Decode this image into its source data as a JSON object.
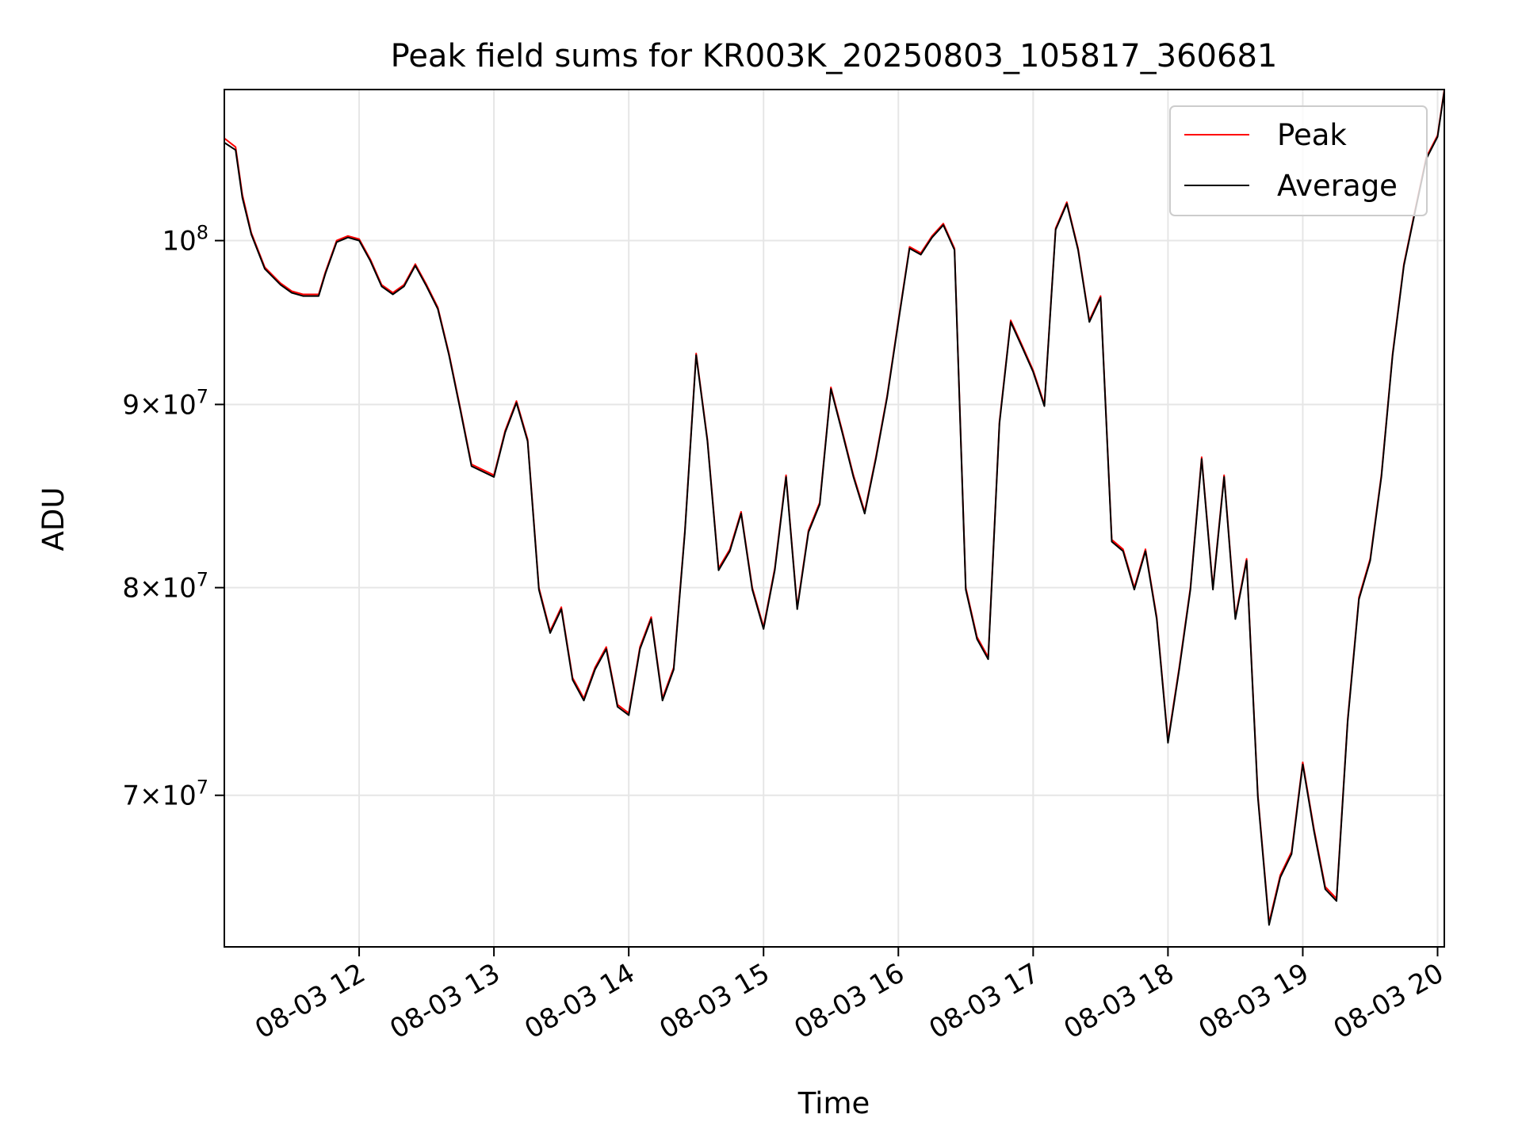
{
  "chart_data": {
    "type": "line",
    "title": "Peak field sums for KR003K_20250803_105817_360681",
    "xlabel": "Time",
    "ylabel": "ADU",
    "y_scale": "log",
    "grid": true,
    "legend_position": "top-right",
    "x_range": [
      "08-03 11:00",
      "08-03 20:03"
    ],
    "y_range": [
      63500000,
      110200000
    ],
    "x_ticks": [
      "08-03 12",
      "08-03 13",
      "08-03 14",
      "08-03 15",
      "08-03 16",
      "08-03 17",
      "08-03 18",
      "08-03 19",
      "08-03 20"
    ],
    "y_ticks": [
      {
        "value": 70000000,
        "mantissa": "7",
        "base": "10",
        "exp": "7"
      },
      {
        "value": 80000000,
        "mantissa": "8",
        "base": "10",
        "exp": "7"
      },
      {
        "value": 90000000,
        "mantissa": "9",
        "base": "10",
        "exp": "7"
      },
      {
        "value": 100000000,
        "mantissa": "",
        "base": "10",
        "exp": "8"
      }
    ],
    "series": [
      {
        "name": "Peak",
        "color": "#ff0000",
        "x": [
          "08-03 11:00",
          "08-03 11:05",
          "08-03 11:08",
          "08-03 11:12",
          "08-03 11:18",
          "08-03 11:25",
          "08-03 11:30",
          "08-03 11:35",
          "08-03 11:42",
          "08-03 11:45",
          "08-03 11:50",
          "08-03 11:55",
          "08-03 12:00",
          "08-03 12:05",
          "08-03 12:10",
          "08-03 12:15",
          "08-03 12:20",
          "08-03 12:25",
          "08-03 12:30",
          "08-03 12:35",
          "08-03 12:40",
          "08-03 12:45",
          "08-03 12:50",
          "08-03 13:00",
          "08-03 13:05",
          "08-03 13:10",
          "08-03 13:15",
          "08-03 13:20",
          "08-03 13:25",
          "08-03 13:30",
          "08-03 13:35",
          "08-03 13:40",
          "08-03 13:45",
          "08-03 13:50",
          "08-03 13:55",
          "08-03 14:00",
          "08-03 14:05",
          "08-03 14:10",
          "08-03 14:15",
          "08-03 14:20",
          "08-03 14:25",
          "08-03 14:30",
          "08-03 14:35",
          "08-03 14:40",
          "08-03 14:45",
          "08-03 14:50",
          "08-03 14:55",
          "08-03 15:00",
          "08-03 15:05",
          "08-03 15:10",
          "08-03 15:15",
          "08-03 15:20",
          "08-03 15:25",
          "08-03 15:30",
          "08-03 15:35",
          "08-03 15:40",
          "08-03 15:45",
          "08-03 15:50",
          "08-03 15:55",
          "08-03 16:00",
          "08-03 16:05",
          "08-03 16:10",
          "08-03 16:15",
          "08-03 16:20",
          "08-03 16:25",
          "08-03 16:30",
          "08-03 16:35",
          "08-03 16:40",
          "08-03 16:45",
          "08-03 16:50",
          "08-03 16:55",
          "08-03 17:00",
          "08-03 17:05",
          "08-03 17:10",
          "08-03 17:15",
          "08-03 17:20",
          "08-03 17:25",
          "08-03 17:30",
          "08-03 17:35",
          "08-03 17:40",
          "08-03 17:45",
          "08-03 17:50",
          "08-03 17:55",
          "08-03 18:00",
          "08-03 18:05",
          "08-03 18:10",
          "08-03 18:15",
          "08-03 18:20",
          "08-03 18:25",
          "08-03 18:30",
          "08-03 18:35",
          "08-03 18:40",
          "08-03 18:45",
          "08-03 18:50",
          "08-03 18:55",
          "08-03 19:00",
          "08-03 19:05",
          "08-03 19:10",
          "08-03 19:15",
          "08-03 19:20",
          "08-03 19:25",
          "08-03 19:30",
          "08-03 19:35",
          "08-03 19:40",
          "08-03 19:45",
          "08-03 19:50",
          "08-03 19:55",
          "08-03 20:00",
          "08-03 20:03"
        ],
        "values": [
          106800000,
          106200000,
          103000000,
          100500000,
          98300000,
          97300000,
          96800000,
          96600000,
          96600000,
          98000000,
          100000000,
          100300000,
          100100000,
          98800000,
          97200000,
          96700000,
          97200000,
          98500000,
          97200000,
          95800000,
          93000000,
          89800000,
          86600000,
          86000000,
          88500000,
          90200000,
          88000000,
          80000000,
          77800000,
          79000000,
          75500000,
          74500000,
          76000000,
          77000000,
          74200000,
          73800000,
          77000000,
          78500000,
          74500000,
          76000000,
          83000000,
          93000000,
          88000000,
          81000000,
          82000000,
          84000000,
          80000000,
          78000000,
          81000000,
          86000000,
          79000000,
          83000000,
          84500000,
          91000000,
          88500000,
          86000000,
          84000000,
          87000000,
          90500000,
          95000000,
          99600000,
          99200000,
          100300000,
          101100000,
          99500000,
          80000000,
          77500000,
          76500000,
          89000000,
          95000000,
          93500000,
          92000000,
          90000000,
          100800000,
          102500000,
          99500000,
          95000000,
          96500000,
          82500000,
          82000000,
          80000000,
          82000000,
          78500000,
          72500000,
          76000000,
          80000000,
          87000000,
          80000000,
          86000000,
          78500000,
          81500000,
          70000000,
          64500000,
          66500000,
          67500000,
          71500000,
          68500000,
          66000000,
          65500000,
          73500000,
          79500000,
          81500000,
          86000000,
          93000000,
          98500000,
          102000000,
          105500000,
          107000000,
          110200000
        ]
      },
      {
        "name": "Average",
        "color": "#000000",
        "x": [
          "08-03 11:00",
          "08-03 11:05",
          "08-03 11:08",
          "08-03 11:12",
          "08-03 11:18",
          "08-03 11:25",
          "08-03 11:30",
          "08-03 11:35",
          "08-03 11:42",
          "08-03 11:45",
          "08-03 11:50",
          "08-03 11:55",
          "08-03 12:00",
          "08-03 12:05",
          "08-03 12:10",
          "08-03 12:15",
          "08-03 12:20",
          "08-03 12:25",
          "08-03 12:30",
          "08-03 12:35",
          "08-03 12:40",
          "08-03 12:45",
          "08-03 12:50",
          "08-03 13:00",
          "08-03 13:05",
          "08-03 13:10",
          "08-03 13:15",
          "08-03 13:20",
          "08-03 13:25",
          "08-03 13:30",
          "08-03 13:35",
          "08-03 13:40",
          "08-03 13:45",
          "08-03 13:50",
          "08-03 13:55",
          "08-03 14:00",
          "08-03 14:05",
          "08-03 14:10",
          "08-03 14:15",
          "08-03 14:20",
          "08-03 14:25",
          "08-03 14:30",
          "08-03 14:35",
          "08-03 14:40",
          "08-03 14:45",
          "08-03 14:50",
          "08-03 14:55",
          "08-03 15:00",
          "08-03 15:05",
          "08-03 15:10",
          "08-03 15:15",
          "08-03 15:20",
          "08-03 15:25",
          "08-03 15:30",
          "08-03 15:35",
          "08-03 15:40",
          "08-03 15:45",
          "08-03 15:50",
          "08-03 15:55",
          "08-03 16:00",
          "08-03 16:05",
          "08-03 16:10",
          "08-03 16:15",
          "08-03 16:20",
          "08-03 16:25",
          "08-03 16:30",
          "08-03 16:35",
          "08-03 16:40",
          "08-03 16:45",
          "08-03 16:50",
          "08-03 16:55",
          "08-03 17:00",
          "08-03 17:05",
          "08-03 17:10",
          "08-03 17:15",
          "08-03 17:20",
          "08-03 17:25",
          "08-03 17:30",
          "08-03 17:35",
          "08-03 17:40",
          "08-03 17:45",
          "08-03 17:50",
          "08-03 17:55",
          "08-03 18:00",
          "08-03 18:05",
          "08-03 18:10",
          "08-03 18:15",
          "08-03 18:20",
          "08-03 18:25",
          "08-03 18:30",
          "08-03 18:35",
          "08-03 18:40",
          "08-03 18:45",
          "08-03 18:50",
          "08-03 18:55",
          "08-03 19:00",
          "08-03 19:05",
          "08-03 19:10",
          "08-03 19:15",
          "08-03 19:20",
          "08-03 19:25",
          "08-03 19:30",
          "08-03 19:35",
          "08-03 19:40",
          "08-03 19:45",
          "08-03 19:50",
          "08-03 19:55",
          "08-03 20:00",
          "08-03 20:03"
        ],
        "values": [
          106500000,
          106000000,
          102800000,
          100400000,
          98200000,
          97200000,
          96700000,
          96500000,
          96500000,
          97900000,
          99900000,
          100200000,
          100000000,
          98700000,
          97100000,
          96600000,
          97100000,
          98400000,
          97100000,
          95700000,
          92900000,
          89700000,
          86500000,
          85900000,
          88400000,
          90100000,
          87900000,
          79900000,
          77700000,
          78900000,
          75400000,
          74400000,
          75900000,
          76900000,
          74100000,
          73700000,
          76900000,
          78400000,
          74400000,
          75900000,
          82900000,
          92900000,
          87900000,
          80900000,
          81900000,
          83900000,
          79900000,
          77900000,
          80900000,
          85900000,
          78900000,
          82900000,
          84400000,
          90900000,
          88400000,
          85900000,
          83900000,
          86900000,
          90400000,
          94900000,
          99500000,
          99100000,
          100200000,
          101000000,
          99400000,
          79900000,
          77400000,
          76400000,
          88900000,
          94900000,
          93400000,
          91900000,
          89900000,
          100700000,
          102400000,
          99400000,
          94900000,
          96400000,
          82400000,
          81900000,
          79900000,
          81900000,
          78400000,
          72400000,
          75900000,
          79900000,
          86900000,
          79900000,
          85900000,
          78400000,
          81400000,
          69900000,
          64400000,
          66400000,
          67400000,
          71400000,
          68400000,
          65900000,
          65400000,
          73400000,
          79400000,
          81400000,
          85900000,
          92900000,
          98400000,
          101900000,
          105400000,
          106900000,
          110100000
        ]
      }
    ]
  }
}
